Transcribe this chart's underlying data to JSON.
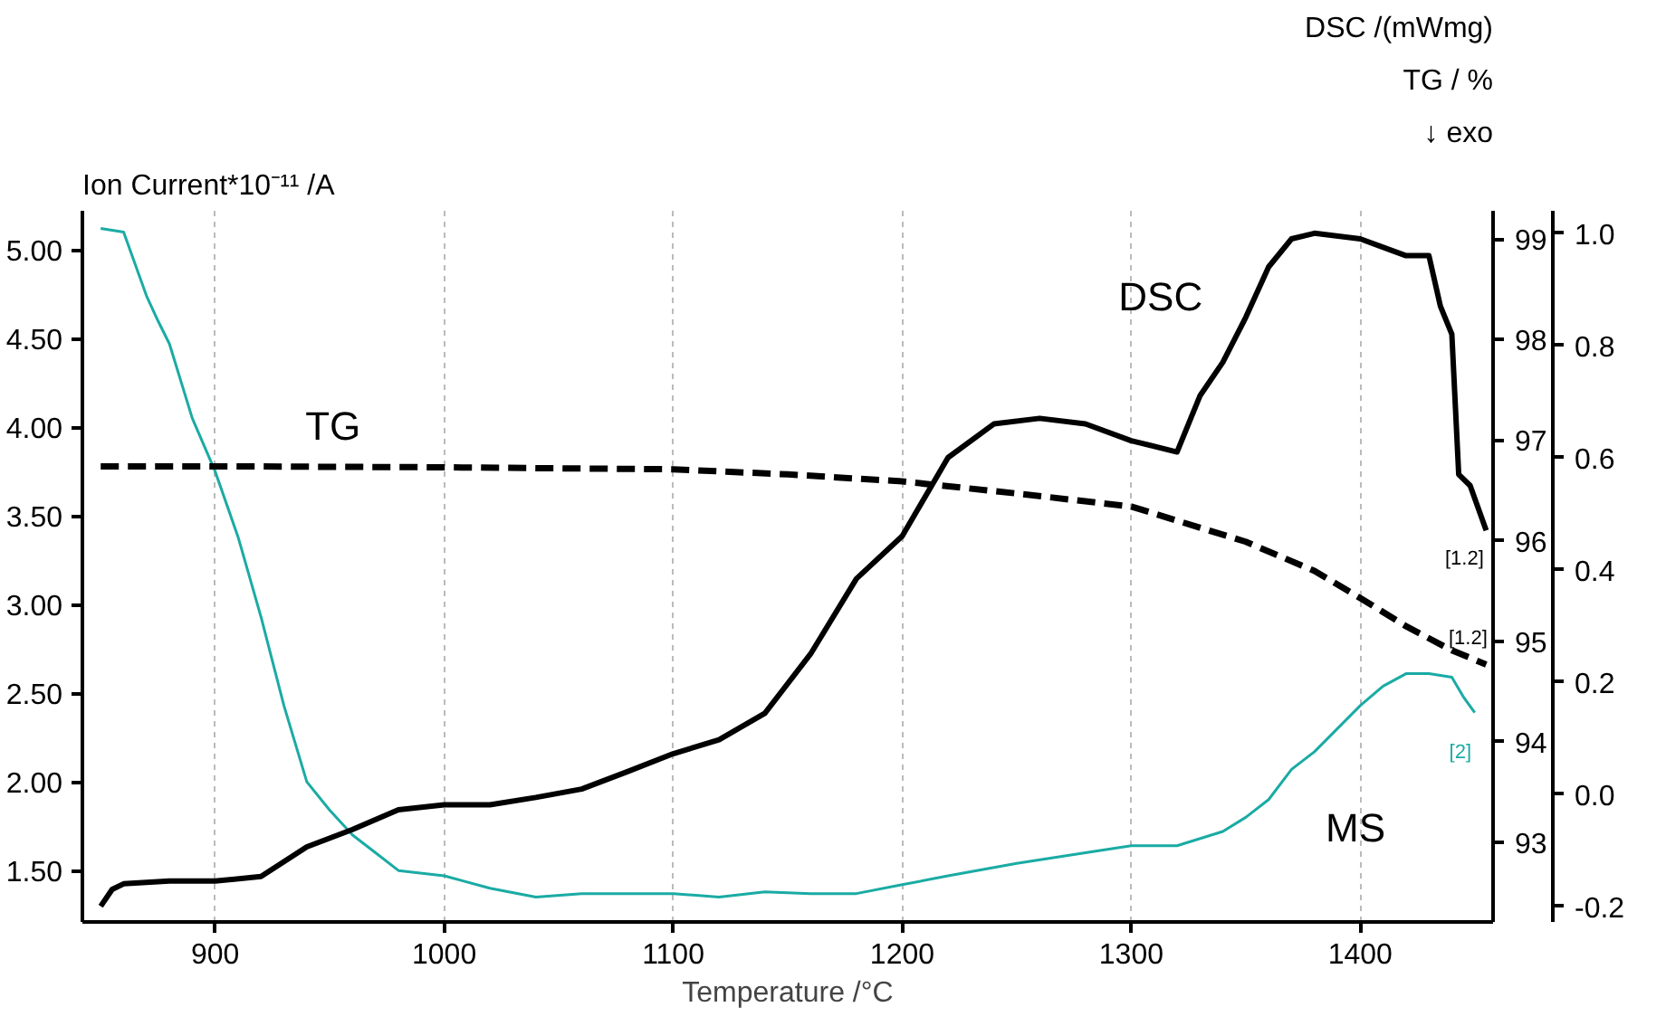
{
  "chart_data": {
    "type": "line",
    "xlabel": "Temperature /°C",
    "ylabel": "Ion Current*10⁻¹¹ /A",
    "y2label": "TG / %",
    "y3label": "DSC /(mWmg)",
    "xlim": [
      842,
      1458
    ],
    "xticks": [
      900,
      1000,
      1100,
      1200,
      1300,
      1400
    ],
    "ylim": [
      1.21,
      5.22
    ],
    "yticks": [
      {
        "value": 1.5,
        "label": "1.50"
      },
      {
        "value": 2,
        "label": "2.00"
      },
      {
        "value": 2.5,
        "label": "2.50"
      },
      {
        "value": 3,
        "label": "3.00"
      },
      {
        "value": 3.5,
        "label": "3.50"
      },
      {
        "value": 4,
        "label": "4.00"
      },
      {
        "value": 4.5,
        "label": "4.50"
      },
      {
        "value": 5,
        "label": "5.00"
      }
    ],
    "y2lim": [
      92.21,
      99.28
    ],
    "y2ticks": [
      93,
      94,
      95,
      96,
      97,
      98,
      99
    ],
    "y3lim": [
      -0.228,
      1.04
    ],
    "y3ticks": [
      {
        "value": -0.2,
        "label": "-0.2"
      },
      {
        "value": 0,
        "label": "0.0"
      },
      {
        "value": 0.2,
        "label": "0.2"
      },
      {
        "value": 0.4,
        "label": "0.4"
      },
      {
        "value": 0.6,
        "label": "0.6"
      },
      {
        "value": 0.8,
        "label": "0.8"
      },
      {
        "value": 1,
        "label": "1.0"
      }
    ],
    "grid": "x",
    "legend": false,
    "marker": "none",
    "series": [
      {
        "name": "MS",
        "axis": "y",
        "color": "#1aaba4",
        "line_style": "solid",
        "x": [
          850,
          860,
          870,
          875,
          880,
          890,
          900,
          910,
          920,
          930,
          940,
          950,
          960,
          970,
          980,
          1000,
          1020,
          1040,
          1060,
          1080,
          1100,
          1120,
          1140,
          1160,
          1180,
          1200,
          1220,
          1250,
          1280,
          1300,
          1320,
          1340,
          1350,
          1360,
          1370,
          1380,
          1390,
          1400,
          1410,
          1420,
          1430,
          1440,
          1445,
          1450
        ],
        "values": [
          5.12,
          5.1,
          4.74,
          4.6,
          4.47,
          4.05,
          3.75,
          3.38,
          2.93,
          2.43,
          2.0,
          1.84,
          1.7,
          1.6,
          1.5,
          1.47,
          1.4,
          1.35,
          1.37,
          1.37,
          1.37,
          1.35,
          1.38,
          1.37,
          1.37,
          1.42,
          1.47,
          1.54,
          1.6,
          1.64,
          1.64,
          1.72,
          1.8,
          1.9,
          2.07,
          2.17,
          2.3,
          2.43,
          2.54,
          2.61,
          2.61,
          2.59,
          2.48,
          2.39
        ]
      },
      {
        "name": "DSC",
        "axis": "y3",
        "color": "#000000",
        "line_style": "solid",
        "x": [
          850,
          855,
          860,
          880,
          900,
          920,
          940,
          960,
          980,
          1000,
          1020,
          1040,
          1060,
          1080,
          1100,
          1120,
          1140,
          1160,
          1180,
          1200,
          1220,
          1240,
          1260,
          1280,
          1300,
          1320,
          1330,
          1340,
          1350,
          1360,
          1370,
          1380,
          1400,
          1420,
          1430,
          1435,
          1440,
          1443,
          1448,
          1455
        ],
        "values": [
          -0.2,
          -0.17,
          -0.16,
          -0.155,
          -0.155,
          -0.147,
          -0.094,
          -0.063,
          -0.028,
          -0.019,
          -0.019,
          -0.006,
          0.009,
          0.04,
          0.072,
          0.097,
          0.144,
          0.25,
          0.384,
          0.46,
          0.6,
          0.66,
          0.67,
          0.66,
          0.63,
          0.61,
          0.71,
          0.77,
          0.85,
          0.94,
          0.99,
          1.0,
          0.99,
          0.96,
          0.96,
          0.87,
          0.82,
          0.57,
          0.55,
          0.47
        ]
      },
      {
        "name": "TG",
        "axis": "y2",
        "color": "#000000",
        "line_style": "dashed",
        "x": [
          850,
          900,
          1000,
          1100,
          1150,
          1200,
          1250,
          1300,
          1350,
          1380,
          1400,
          1420,
          1440,
          1455
        ],
        "values": [
          96.74,
          96.74,
          96.73,
          96.71,
          96.66,
          96.59,
          96.47,
          96.34,
          95.99,
          95.7,
          95.43,
          95.15,
          94.91,
          94.77
        ]
      }
    ],
    "annotations": [
      "↓ exo",
      "[2]",
      "[1.2]",
      "[1.2]"
    ]
  }
}
